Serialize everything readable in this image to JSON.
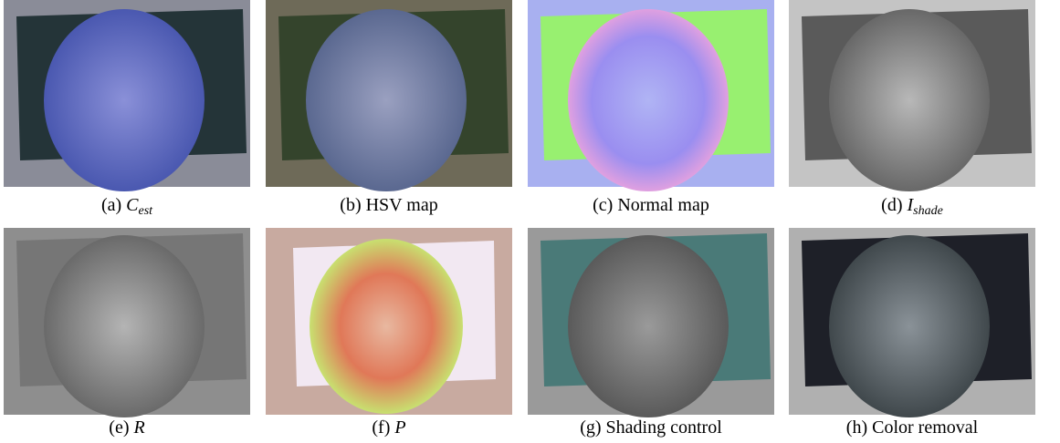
{
  "figure": {
    "panels": [
      {
        "label": "(a)",
        "symbol": "C",
        "sub": "est"
      },
      {
        "label": "(b)",
        "text": "HSV map"
      },
      {
        "label": "(c)",
        "text": "Normal map"
      },
      {
        "label": "(d)",
        "symbol": "I",
        "sub": "shade"
      },
      {
        "label": "(e)",
        "symbol": "R"
      },
      {
        "label": "(f)",
        "symbol": "P"
      },
      {
        "label": "(g)",
        "text": "Shading control"
      },
      {
        "label": "(h)",
        "text": "Color removal"
      }
    ]
  }
}
